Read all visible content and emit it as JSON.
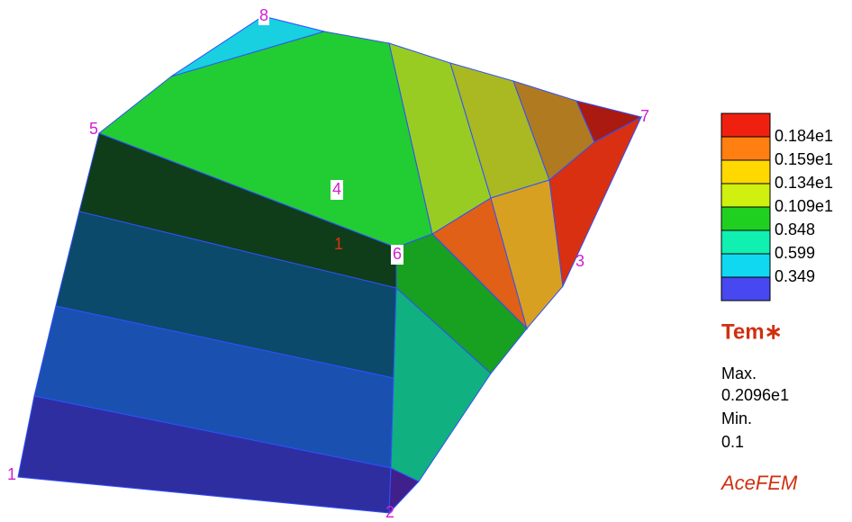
{
  "node_labels": [
    "8",
    "5",
    "7",
    "4",
    "6",
    "3",
    "1",
    "2"
  ],
  "element_label": "1",
  "legend": {
    "labels": [
      "0.184e1",
      "0.159e1",
      "0.134e1",
      "0.109e1",
      "0.848",
      "0.599",
      "0.349"
    ],
    "title": "Tem∗"
  },
  "info": {
    "max_label": "Max.",
    "max_value": "0.2096e1",
    "min_label": "Min.",
    "min_value": "0.1"
  },
  "brand": "AceFEM"
}
